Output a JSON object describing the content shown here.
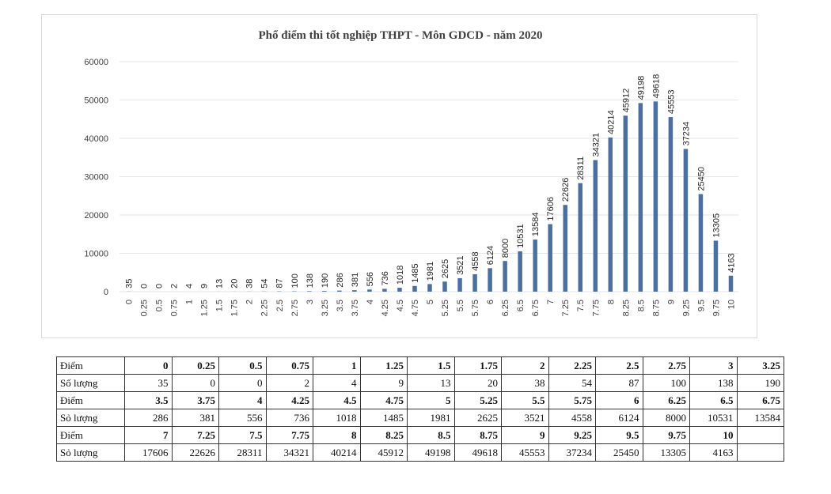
{
  "chart_data": {
    "type": "bar",
    "title": "Phổ điểm thi tốt nghiệp THPT - Môn GDCD - năm 2020",
    "xlabel": "",
    "ylabel": "",
    "ylim": [
      0,
      60000
    ],
    "yticks": [
      "0",
      "10000",
      "20000",
      "30000",
      "40000",
      "50000",
      "60000"
    ],
    "grid": true,
    "bar_color": "#4a6fa5",
    "categories": [
      "0",
      "0.25",
      "0.5",
      "0.75",
      "1",
      "1.25",
      "1.5",
      "1.75",
      "2",
      "2.25",
      "2.5",
      "2.75",
      "3",
      "3.25",
      "3.5",
      "3.75",
      "4",
      "4.25",
      "4.5",
      "4.75",
      "5",
      "5.25",
      "5.5",
      "5.75",
      "6",
      "6.25",
      "6.5",
      "6.75",
      "7",
      "7.25",
      "7.5",
      "7.75",
      "8",
      "8.25",
      "8.5",
      "8.75",
      "9",
      "9.25",
      "9.5",
      "9.75",
      "10"
    ],
    "values": [
      35,
      0,
      0,
      2,
      4,
      9,
      13,
      20,
      38,
      54,
      87,
      100,
      138,
      190,
      286,
      381,
      556,
      736,
      1018,
      1485,
      1981,
      2625,
      3521,
      4558,
      6124,
      8000,
      10531,
      13584,
      17606,
      22626,
      28311,
      34321,
      40214,
      45912,
      49198,
      49618,
      45553,
      37234,
      25450,
      13305,
      4163
    ]
  },
  "table": {
    "score_label": "Điểm",
    "count_label": "Số lượng",
    "count_label_alt": "Sỏ lượng",
    "rows": [
      {
        "scores": [
          "0",
          "0.25",
          "0.5",
          "0.75",
          "1",
          "1.25",
          "1.5",
          "1.75",
          "2",
          "2.25",
          "2.5",
          "2.75",
          "3",
          "3.25"
        ],
        "counts": [
          "35",
          "0",
          "0",
          "2",
          "4",
          "9",
          "13",
          "20",
          "38",
          "54",
          "87",
          "100",
          "138",
          "190"
        ]
      },
      {
        "scores": [
          "3.5",
          "3.75",
          "4",
          "4.25",
          "4.5",
          "4.75",
          "5",
          "5.25",
          "5.5",
          "5.75",
          "6",
          "6.25",
          "6.5",
          "6.75"
        ],
        "counts": [
          "286",
          "381",
          "556",
          "736",
          "1018",
          "1485",
          "1981",
          "2625",
          "3521",
          "4558",
          "6124",
          "8000",
          "10531",
          "13584"
        ]
      },
      {
        "scores": [
          "7",
          "7.25",
          "7.5",
          "7.75",
          "8",
          "8.25",
          "8.5",
          "8.75",
          "9",
          "9.25",
          "9.5",
          "9.75",
          "10",
          ""
        ],
        "counts": [
          "17606",
          "22626",
          "28311",
          "34321",
          "40214",
          "45912",
          "49198",
          "49618",
          "45553",
          "37234",
          "25450",
          "13305",
          "4163",
          ""
        ]
      }
    ]
  }
}
